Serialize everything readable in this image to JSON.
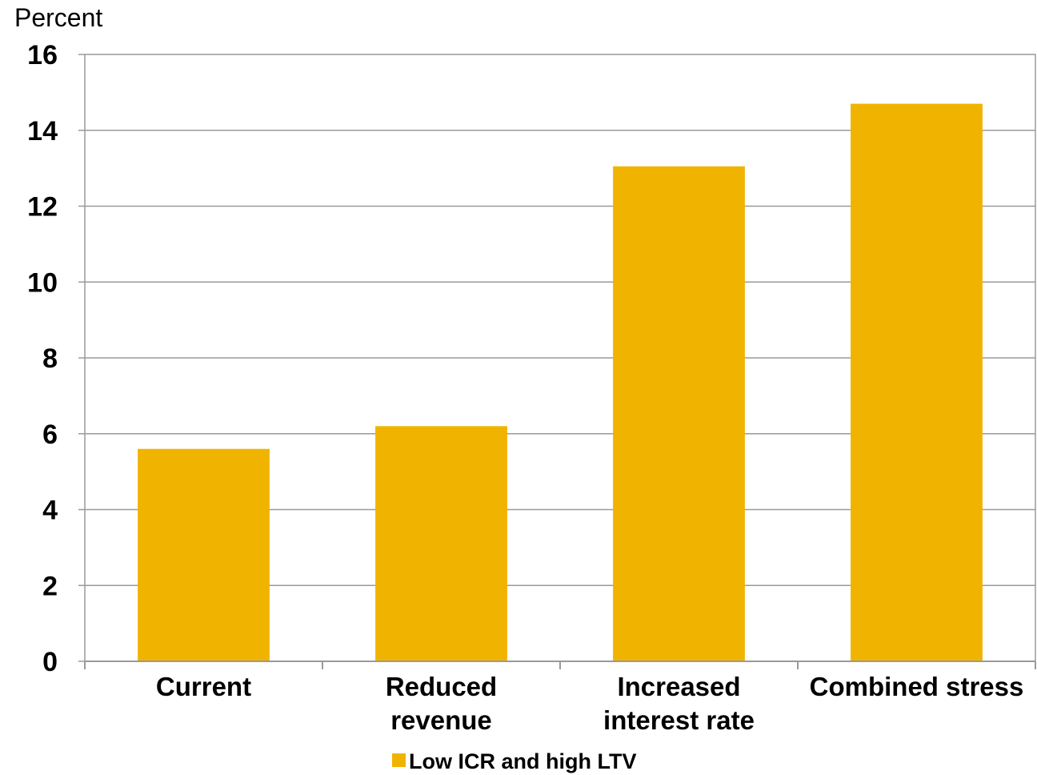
{
  "chart_data": {
    "type": "bar",
    "title": "",
    "xlabel": "",
    "ylabel": "Percent",
    "ylim": [
      0,
      16
    ],
    "yticks": [
      0,
      2,
      4,
      6,
      8,
      10,
      12,
      14,
      16
    ],
    "grid": true,
    "legend_position": "bottom-center",
    "categories": [
      [
        "Current"
      ],
      [
        "Reduced",
        "revenue"
      ],
      [
        "Increased",
        "interest rate"
      ],
      [
        "Combined stress"
      ]
    ],
    "series": [
      {
        "name": "Low ICR and high LTV",
        "color": "#F0B400",
        "values": [
          5.6,
          6.2,
          13.05,
          14.7
        ]
      }
    ]
  }
}
